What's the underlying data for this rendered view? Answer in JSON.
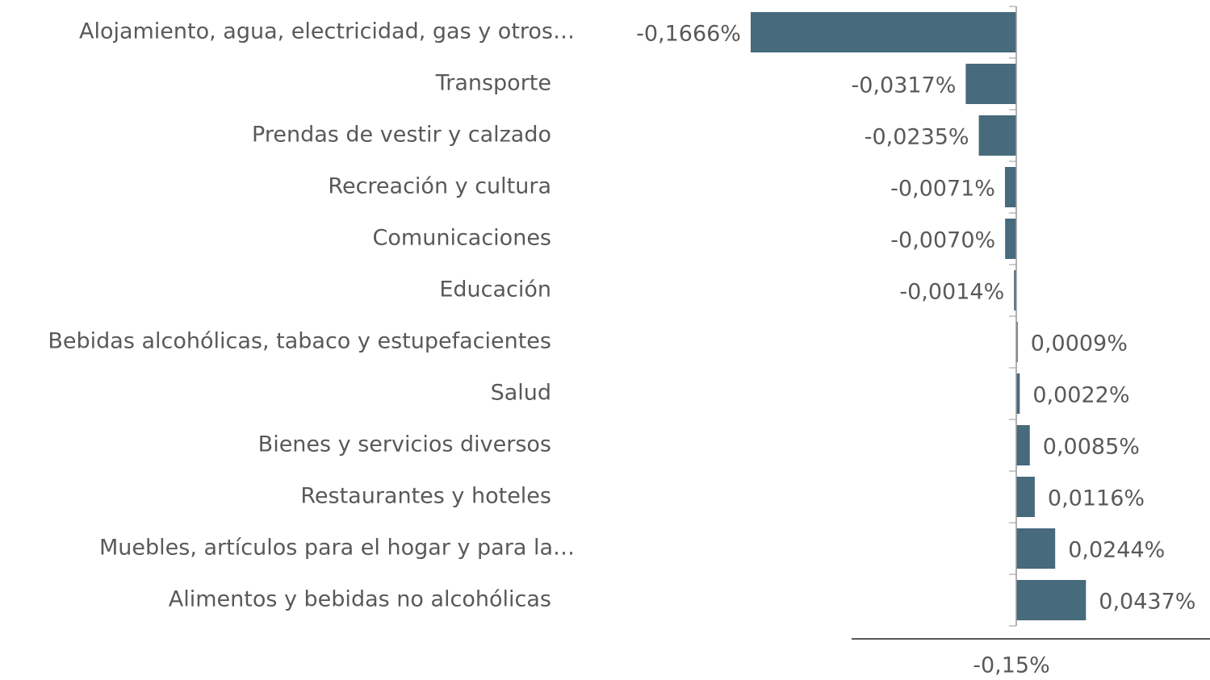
{
  "chart_data": {
    "type": "bar",
    "orientation": "horizontal",
    "categories": [
      "Alojamiento, agua, electricidad, gas y otros…",
      "Transporte",
      "Prendas de vestir y calzado",
      "Recreación y cultura",
      "Comunicaciones",
      "Educación",
      "Bebidas alcohólicas, tabaco y estupefacientes",
      "Salud",
      "Bienes y servicios diversos",
      "Restaurantes y hoteles",
      "Muebles, artículos para el hogar y para la…",
      "Alimentos y bebidas no alcohólicas"
    ],
    "values": [
      -0.1666,
      -0.0317,
      -0.0235,
      -0.0071,
      -0.007,
      -0.0014,
      0.0009,
      0.0022,
      0.0085,
      0.0116,
      0.0244,
      0.0437
    ],
    "value_labels": [
      "-0,1666%",
      "-0,0317%",
      "-0,0235%",
      "-0,0071%",
      "-0,0070%",
      "-0,0014%",
      "0,0009%",
      "0,0022%",
      "0,0085%",
      "0,0116%",
      "0,0244%",
      "0,0437%"
    ],
    "color": "#476a7d",
    "xlim": [
      -0.2,
      0.12
    ],
    "x_axis_label": "-0,15%"
  }
}
